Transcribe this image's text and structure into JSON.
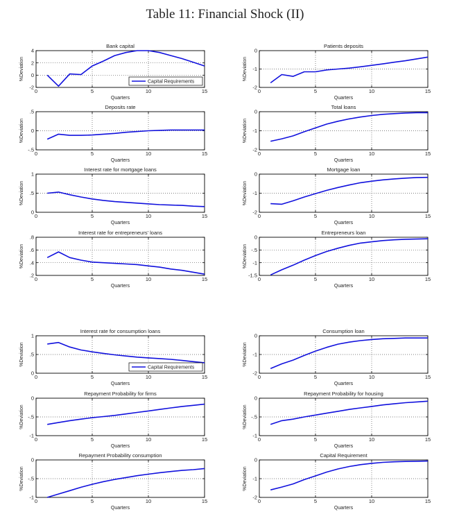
{
  "title": "Table 11: Financial Shock (II)",
  "colors": {
    "series": "#1010dd",
    "axis": "#000000",
    "grid": "#555555"
  },
  "chart_data": [
    {
      "type": "line",
      "title": "Bank capital",
      "xlabel": "Quarters",
      "ylabel": "%Deviation",
      "xlim": [
        0,
        15
      ],
      "ylim": [
        -2,
        4
      ],
      "xticks": [
        0,
        5,
        10,
        15
      ],
      "yticks": [
        -2,
        0,
        2,
        4
      ],
      "legend": "Capital Requirements",
      "legend_position": "bottom-right",
      "x": [
        1,
        2,
        3,
        4,
        5,
        6,
        7,
        8,
        9,
        10,
        11,
        12,
        13,
        14,
        15
      ],
      "series": [
        {
          "name": "Capital Requirements",
          "values": [
            0.0,
            -1.8,
            0.2,
            0.1,
            1.5,
            2.3,
            3.2,
            3.7,
            4.0,
            4.0,
            3.7,
            3.2,
            2.7,
            2.1,
            1.5
          ]
        }
      ]
    },
    {
      "type": "line",
      "title": "Patients deposits",
      "xlabel": "Quarters",
      "ylabel": "%Deviation",
      "xlim": [
        0,
        15
      ],
      "ylim": [
        -2,
        0
      ],
      "xticks": [
        0,
        5,
        10,
        15
      ],
      "yticks": [
        -2,
        -1,
        0
      ],
      "x": [
        1,
        2,
        3,
        4,
        5,
        6,
        7,
        8,
        9,
        10,
        11,
        12,
        13,
        14,
        15
      ],
      "series": [
        {
          "name": "Capital Requirements",
          "values": [
            -1.75,
            -1.3,
            -1.4,
            -1.15,
            -1.15,
            -1.05,
            -1.0,
            -0.95,
            -0.88,
            -0.8,
            -0.72,
            -0.63,
            -0.55,
            -0.45,
            -0.35
          ]
        }
      ]
    },
    {
      "type": "line",
      "title": "Deposits rate",
      "xlabel": "Quarters",
      "ylabel": "%Deviation",
      "xlim": [
        0,
        15
      ],
      "ylim": [
        -0.5,
        0.5
      ],
      "xticks": [
        0,
        5,
        10,
        15
      ],
      "yticks": [
        -0.5,
        0,
        0.5
      ],
      "x": [
        1,
        2,
        3,
        4,
        5,
        6,
        7,
        8,
        9,
        10,
        11,
        12,
        13,
        14,
        15
      ],
      "series": [
        {
          "name": "Capital Requirements",
          "values": [
            -0.22,
            -0.09,
            -0.12,
            -0.12,
            -0.11,
            -0.09,
            -0.07,
            -0.04,
            -0.02,
            0.0,
            0.01,
            0.02,
            0.02,
            0.02,
            0.02
          ]
        }
      ]
    },
    {
      "type": "line",
      "title": "Total loans",
      "xlabel": "Quarters",
      "ylabel": "%Deviation",
      "xlim": [
        0,
        15
      ],
      "ylim": [
        -2,
        0
      ],
      "xticks": [
        0,
        5,
        10,
        15
      ],
      "yticks": [
        -2,
        -1,
        0
      ],
      "x": [
        1,
        2,
        3,
        4,
        5,
        6,
        7,
        8,
        9,
        10,
        11,
        12,
        13,
        14,
        15
      ],
      "series": [
        {
          "name": "Capital Requirements",
          "values": [
            -1.55,
            -1.42,
            -1.27,
            -1.05,
            -0.85,
            -0.65,
            -0.5,
            -0.38,
            -0.28,
            -0.2,
            -0.14,
            -0.1,
            -0.07,
            -0.05,
            -0.05
          ]
        }
      ]
    },
    {
      "type": "line",
      "title": "Interest rate for mortgage loans",
      "xlabel": "Quarters",
      "ylabel": "%Deviation",
      "xlim": [
        0,
        15
      ],
      "ylim": [
        0,
        1
      ],
      "xticks": [
        0,
        5,
        10,
        15
      ],
      "yticks": [
        0,
        0.5,
        1
      ],
      "x": [
        1,
        2,
        3,
        4,
        5,
        6,
        7,
        8,
        9,
        10,
        11,
        12,
        13,
        14,
        15
      ],
      "series": [
        {
          "name": "Capital Requirements",
          "values": [
            0.5,
            0.53,
            0.46,
            0.4,
            0.35,
            0.31,
            0.28,
            0.26,
            0.24,
            0.22,
            0.2,
            0.19,
            0.18,
            0.16,
            0.15
          ]
        }
      ]
    },
    {
      "type": "line",
      "title": "Mortgage loan",
      "xlabel": "Quarters",
      "ylabel": "%Deviation",
      "xlim": [
        0,
        15
      ],
      "ylim": [
        -2,
        0
      ],
      "xticks": [
        0,
        5,
        10,
        15
      ],
      "yticks": [
        -2,
        -1,
        0
      ],
      "x": [
        1,
        2,
        3,
        4,
        5,
        6,
        7,
        8,
        9,
        10,
        11,
        12,
        13,
        14,
        15
      ],
      "series": [
        {
          "name": "Capital Requirements",
          "values": [
            -1.55,
            -1.58,
            -1.4,
            -1.2,
            -1.02,
            -0.85,
            -0.7,
            -0.57,
            -0.45,
            -0.37,
            -0.3,
            -0.25,
            -0.21,
            -0.18,
            -0.17
          ]
        }
      ]
    },
    {
      "type": "line",
      "title": "Interest rate for entrepreneurs' loans",
      "xlabel": "Quarters",
      "ylabel": "%Deviation",
      "xlim": [
        0,
        15
      ],
      "ylim": [
        0.2,
        0.8
      ],
      "xticks": [
        0,
        5,
        10,
        15
      ],
      "yticks": [
        0.2,
        0.4,
        0.6,
        0.8
      ],
      "x": [
        1,
        2,
        3,
        4,
        5,
        6,
        7,
        8,
        9,
        10,
        11,
        12,
        13,
        14,
        15
      ],
      "series": [
        {
          "name": "Capital Requirements",
          "values": [
            0.48,
            0.57,
            0.48,
            0.44,
            0.41,
            0.4,
            0.39,
            0.38,
            0.37,
            0.35,
            0.33,
            0.3,
            0.28,
            0.25,
            0.22
          ]
        }
      ]
    },
    {
      "type": "line",
      "title": "Entrepreneurs loan",
      "xlabel": "Quarters",
      "ylabel": "%Deviation",
      "xlim": [
        0,
        15
      ],
      "ylim": [
        -1.5,
        0
      ],
      "xticks": [
        0,
        5,
        10,
        15
      ],
      "yticks": [
        -1.5,
        -1,
        -0.5,
        0
      ],
      "x": [
        1,
        2,
        3,
        4,
        5,
        6,
        7,
        8,
        9,
        10,
        11,
        12,
        13,
        14,
        15
      ],
      "series": [
        {
          "name": "Capital Requirements",
          "values": [
            -1.48,
            -1.28,
            -1.1,
            -0.9,
            -0.72,
            -0.56,
            -0.43,
            -0.32,
            -0.23,
            -0.18,
            -0.13,
            -0.1,
            -0.08,
            -0.07,
            -0.06
          ]
        }
      ]
    },
    {
      "type": "line",
      "title": "Interest rate for consumption loans",
      "xlabel": "Quarters",
      "ylabel": "%Deviation",
      "xlim": [
        0,
        15
      ],
      "ylim": [
        0,
        1
      ],
      "xticks": [
        0,
        5,
        10,
        15
      ],
      "yticks": [
        0,
        0.5,
        1
      ],
      "legend": "Capital Requirements",
      "legend_position": "bottom-right",
      "x": [
        1,
        2,
        3,
        4,
        5,
        6,
        7,
        8,
        9,
        10,
        11,
        12,
        13,
        14,
        15
      ],
      "series": [
        {
          "name": "Capital Requirements",
          "values": [
            0.78,
            0.82,
            0.7,
            0.62,
            0.57,
            0.53,
            0.49,
            0.46,
            0.43,
            0.41,
            0.39,
            0.37,
            0.34,
            0.31,
            0.28
          ]
        }
      ]
    },
    {
      "type": "line",
      "title": "Consumption loan",
      "xlabel": "Quarters",
      "ylabel": "%Deviation",
      "xlim": [
        0,
        15
      ],
      "ylim": [
        -2,
        0
      ],
      "xticks": [
        0,
        5,
        10,
        15
      ],
      "yticks": [
        -2,
        -1,
        0
      ],
      "x": [
        1,
        2,
        3,
        4,
        5,
        6,
        7,
        8,
        9,
        10,
        11,
        12,
        13,
        14,
        15
      ],
      "series": [
        {
          "name": "Capital Requirements",
          "values": [
            -1.75,
            -1.5,
            -1.3,
            -1.05,
            -0.82,
            -0.62,
            -0.45,
            -0.34,
            -0.26,
            -0.2,
            -0.16,
            -0.14,
            -0.12,
            -0.12,
            -0.12
          ]
        }
      ]
    },
    {
      "type": "line",
      "title": "Repayment Probability for firms",
      "xlabel": "Quarters",
      "ylabel": "%Deviation",
      "xlim": [
        0,
        15
      ],
      "ylim": [
        -1,
        0
      ],
      "xticks": [
        0,
        5,
        10,
        15
      ],
      "yticks": [
        -1,
        -0.5,
        0
      ],
      "x": [
        1,
        2,
        3,
        4,
        5,
        6,
        7,
        8,
        9,
        10,
        11,
        12,
        13,
        14,
        15
      ],
      "series": [
        {
          "name": "Capital Requirements",
          "values": [
            -0.7,
            -0.65,
            -0.6,
            -0.56,
            -0.52,
            -0.49,
            -0.46,
            -0.42,
            -0.38,
            -0.34,
            -0.3,
            -0.26,
            -0.22,
            -0.19,
            -0.16
          ]
        }
      ]
    },
    {
      "type": "line",
      "title": "Repayment Probability for housing",
      "xlabel": "Quarters",
      "ylabel": "%Deviation",
      "xlim": [
        0,
        15
      ],
      "ylim": [
        -1,
        0
      ],
      "xticks": [
        0,
        5,
        10,
        15
      ],
      "yticks": [
        -1,
        -0.5,
        0
      ],
      "x": [
        1,
        2,
        3,
        4,
        5,
        6,
        7,
        8,
        9,
        10,
        11,
        12,
        13,
        14,
        15
      ],
      "series": [
        {
          "name": "Capital Requirements",
          "values": [
            -0.7,
            -0.6,
            -0.56,
            -0.5,
            -0.45,
            -0.4,
            -0.35,
            -0.3,
            -0.26,
            -0.22,
            -0.18,
            -0.15,
            -0.12,
            -0.1,
            -0.08
          ]
        }
      ]
    },
    {
      "type": "line",
      "title": "Repayment Probability consumption",
      "xlabel": "Quarters",
      "ylabel": "%Deviation",
      "xlim": [
        0,
        15
      ],
      "ylim": [
        -1,
        0
      ],
      "xticks": [
        0,
        5,
        10,
        15
      ],
      "yticks": [
        -1,
        -0.5,
        0
      ],
      "x": [
        1,
        2,
        3,
        4,
        5,
        6,
        7,
        8,
        9,
        10,
        11,
        12,
        13,
        14,
        15
      ],
      "series": [
        {
          "name": "Capital Requirements",
          "values": [
            -1.0,
            -0.91,
            -0.82,
            -0.73,
            -0.65,
            -0.58,
            -0.52,
            -0.47,
            -0.42,
            -0.38,
            -0.34,
            -0.31,
            -0.28,
            -0.26,
            -0.23
          ]
        }
      ]
    },
    {
      "type": "line",
      "title": "Capital Requirement",
      "xlabel": "Quarters",
      "ylabel": "%Deviation",
      "xlim": [
        0,
        15
      ],
      "ylim": [
        -2,
        0
      ],
      "xticks": [
        0,
        5,
        10,
        15
      ],
      "yticks": [
        -2,
        -1,
        0
      ],
      "x": [
        1,
        2,
        3,
        4,
        5,
        6,
        7,
        8,
        9,
        10,
        11,
        12,
        13,
        14,
        15
      ],
      "series": [
        {
          "name": "Capital Requirements",
          "values": [
            -1.6,
            -1.45,
            -1.28,
            -1.05,
            -0.85,
            -0.65,
            -0.48,
            -0.35,
            -0.25,
            -0.18,
            -0.13,
            -0.1,
            -0.08,
            -0.07,
            -0.06
          ]
        }
      ]
    }
  ]
}
